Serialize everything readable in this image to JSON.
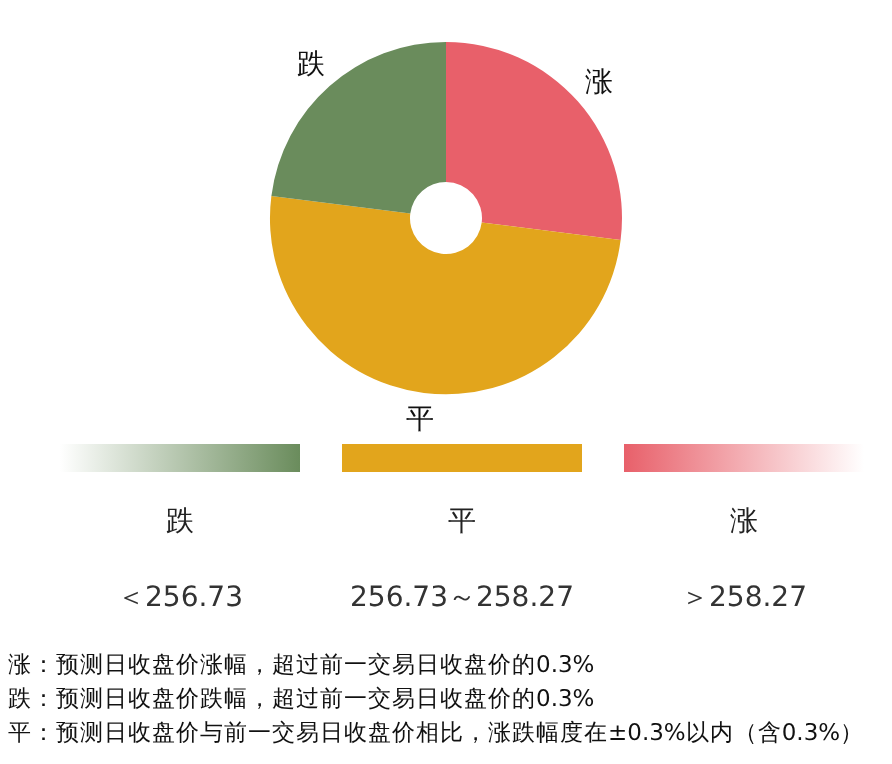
{
  "chart_data": {
    "type": "donut",
    "categories": [
      "涨",
      "平",
      "跌"
    ],
    "values": [
      27,
      50,
      23
    ],
    "colors": [
      "#e8606a",
      "#e2a51c",
      "#6a8c5c"
    ],
    "annotations": [
      "＜256.73",
      "256.73～258.27",
      "＞258.27",
      "涨：预测日收盘价涨幅，超过前一交易日收盘价的0.3%",
      "跌：预测日收盘价跌幅，超过前一交易日收盘价的0.3%",
      "平：预测日收盘价与前一交易日收盘价相比，涨跌幅度在±0.3%以内（含0.3%）"
    ]
  }
}
